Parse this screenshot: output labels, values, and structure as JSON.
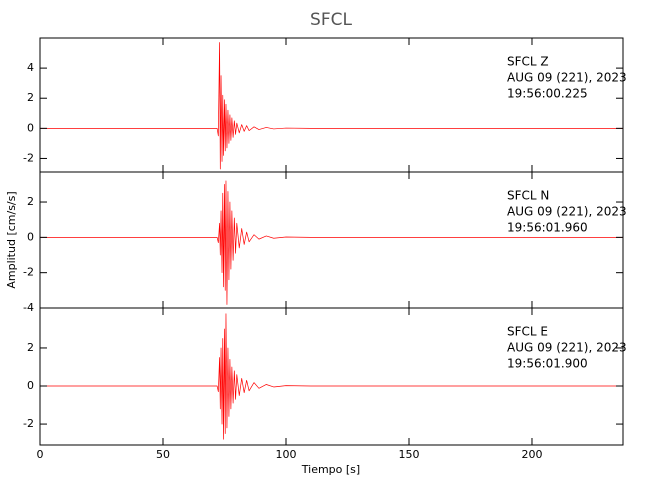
{
  "chart_data": [
    {
      "type": "line",
      "title": "SFCL",
      "annotations": [
        "SFCL   Z",
        "AUG 09 (221), 2023",
        "19:56:00.225"
      ],
      "xlim": [
        0,
        237
      ],
      "ylim": [
        -2.9,
        6
      ],
      "yticks": [
        -2,
        0,
        2,
        4
      ],
      "series": [
        {
          "name": "SFCL Z",
          "color": "#ff0000",
          "x": [
            0,
            20,
            40,
            60,
            72,
            72.5,
            73,
            73.3,
            73.6,
            74,
            74.3,
            74.6,
            75,
            75.3,
            75.6,
            76,
            76.4,
            76.8,
            77.2,
            77.6,
            78,
            78.5,
            79,
            79.5,
            80,
            81,
            82,
            83,
            84,
            85,
            87,
            89,
            92,
            95,
            100,
            110,
            130,
            160,
            200,
            237
          ],
          "values": [
            0,
            0,
            0,
            0,
            0,
            -0.5,
            5.7,
            -2.7,
            3.5,
            -2.2,
            2.2,
            -1.8,
            1.9,
            -1.5,
            1.6,
            -1.3,
            1.2,
            -1.0,
            0.9,
            -0.8,
            0.7,
            -0.6,
            0.5,
            -0.4,
            0.35,
            -0.3,
            0.25,
            -0.2,
            0.18,
            -0.15,
            0.1,
            -0.08,
            0.06,
            -0.04,
            0.02,
            0,
            0,
            0,
            0,
            0
          ]
        }
      ]
    },
    {
      "type": "line",
      "ylabel": "Amplitud [cm/s/s]",
      "annotations": [
        "SFCL   N",
        "AUG 09 (221), 2023",
        "19:56:01.960"
      ],
      "xlim": [
        0,
        237
      ],
      "ylim": [
        -4,
        3.7
      ],
      "yticks": [
        -4,
        -2,
        0,
        2
      ],
      "series": [
        {
          "name": "SFCL N",
          "color": "#ff0000",
          "x": [
            0,
            20,
            40,
            60,
            72,
            72.5,
            73,
            73.3,
            73.6,
            74,
            74.3,
            74.6,
            75,
            75.3,
            75.6,
            76,
            76.4,
            76.8,
            77.2,
            77.6,
            78,
            78.5,
            79,
            79.5,
            80,
            81,
            82,
            83,
            84,
            85,
            87,
            89,
            92,
            95,
            100,
            110,
            130,
            160,
            200,
            237
          ],
          "values": [
            0,
            0,
            0,
            0,
            0,
            -0.3,
            0.8,
            -1.0,
            1.5,
            -2.0,
            2.5,
            -2.8,
            3.0,
            -3.0,
            3.2,
            -3.8,
            2.6,
            -2.4,
            2.0,
            -1.8,
            1.5,
            -1.3,
            1.1,
            -0.9,
            0.8,
            -0.6,
            0.5,
            -0.4,
            0.3,
            -0.25,
            0.15,
            -0.1,
            0.08,
            -0.05,
            0.02,
            0,
            0,
            0,
            0,
            0
          ]
        }
      ]
    },
    {
      "type": "line",
      "xlabel": "Tiempo [s]",
      "annotations": [
        "SFCL   E",
        "AUG 09 (221), 2023",
        "19:56:01.900"
      ],
      "xlim": [
        0,
        237
      ],
      "xticks": [
        0,
        50,
        100,
        150,
        200
      ],
      "ylim": [
        -3.1,
        4.1
      ],
      "yticks": [
        -2,
        0,
        2
      ],
      "series": [
        {
          "name": "SFCL E",
          "color": "#ff0000",
          "x": [
            0,
            20,
            40,
            60,
            72,
            72.5,
            73,
            73.3,
            73.6,
            74,
            74.3,
            74.6,
            75,
            75.3,
            75.6,
            76,
            76.4,
            76.8,
            77.2,
            77.6,
            78,
            78.5,
            79,
            79.5,
            80,
            81,
            82,
            83,
            84,
            85,
            87,
            89,
            92,
            95,
            100,
            110,
            130,
            160,
            200,
            237
          ],
          "values": [
            0,
            0,
            0,
            0,
            0,
            -0.3,
            1.5,
            -1.2,
            2.0,
            -2.0,
            2.5,
            -2.8,
            3.0,
            -2.5,
            3.8,
            -2.2,
            2.0,
            -1.6,
            1.4,
            -1.2,
            1.0,
            -0.9,
            0.8,
            -0.7,
            0.6,
            -0.5,
            0.4,
            -0.35,
            0.3,
            -0.25,
            0.18,
            -0.12,
            0.08,
            -0.05,
            0.02,
            0,
            0,
            0,
            0,
            0
          ]
        }
      ]
    }
  ]
}
